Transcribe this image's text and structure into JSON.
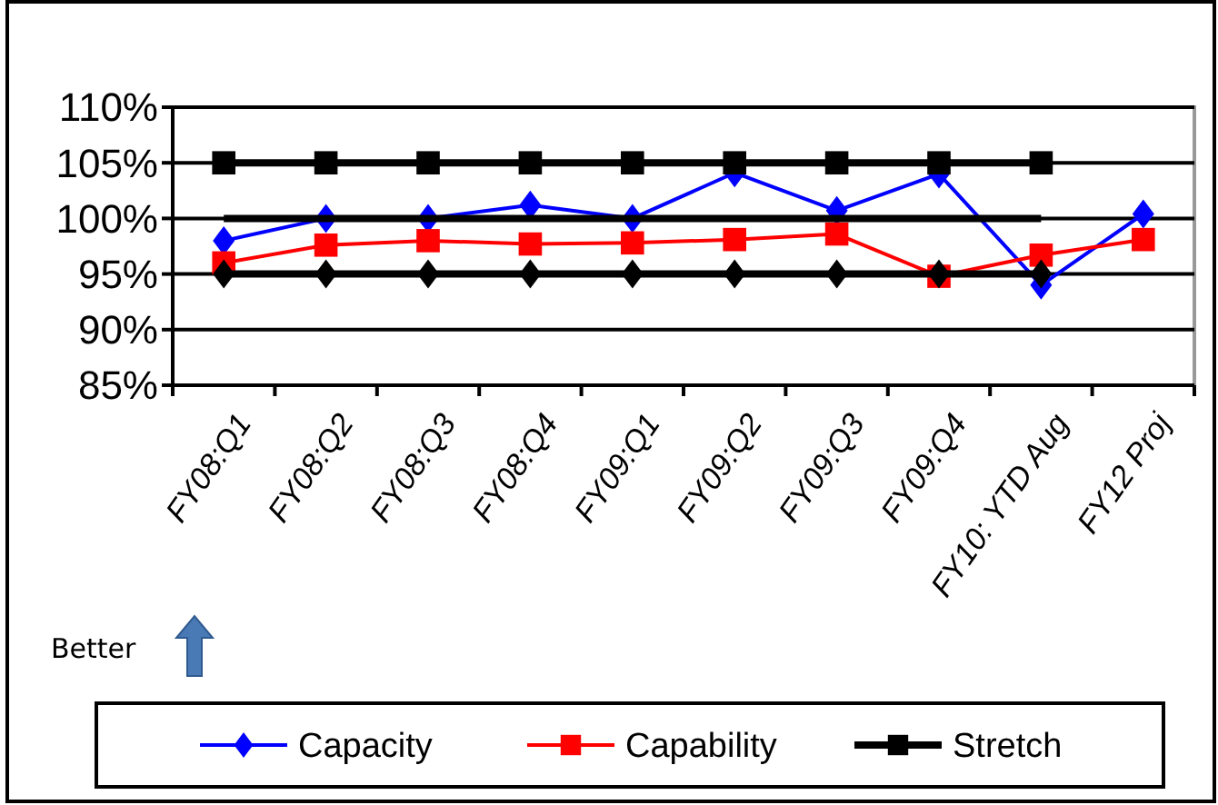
{
  "chart_data": {
    "type": "line",
    "categories": [
      "FY08:Q1",
      "FY08:Q2",
      "FY08:Q3",
      "FY08:Q4",
      "FY09:Q1",
      "FY09:Q2",
      "FY09:Q3",
      "FY09:Q4",
      "FY10: YTD Aug",
      "FY12 Proj"
    ],
    "series": [
      {
        "name": "Capacity",
        "color": "#0000ff",
        "marker": "diamond",
        "values": [
          98,
          100,
          100,
          101.2,
          100,
          104.1,
          100.7,
          104,
          94,
          100.4
        ]
      },
      {
        "name": "Capability",
        "color": "#ff0000",
        "marker": "square",
        "values": [
          96,
          97.6,
          98,
          97.7,
          97.8,
          98.1,
          98.6,
          94.8,
          96.7,
          98.1
        ]
      },
      {
        "name": "Stretch",
        "color": "#000000",
        "marker": "square",
        "values": [
          105,
          105,
          105,
          105,
          105,
          105,
          105,
          105,
          105,
          null
        ]
      },
      {
        "color": "#000000",
        "marker": "none",
        "values": [
          100,
          100,
          100,
          100,
          100,
          100,
          100,
          100,
          100,
          null
        ]
      },
      {
        "color": "#000000",
        "marker": "diamond",
        "values": [
          95,
          95,
          95,
          95,
          95,
          95,
          95,
          95,
          95,
          null
        ]
      }
    ],
    "ylim": [
      85,
      110
    ],
    "yticks": [
      {
        "value": 85,
        "label": "85%"
      },
      {
        "value": 90,
        "label": "90%"
      },
      {
        "value": 95,
        "label": "95%"
      },
      {
        "value": 100,
        "label": "100%"
      },
      {
        "value": 105,
        "label": "105%"
      },
      {
        "value": 110,
        "label": "110%"
      }
    ],
    "grid": "y",
    "legend": "bottom",
    "annotations": [
      "Better"
    ]
  }
}
